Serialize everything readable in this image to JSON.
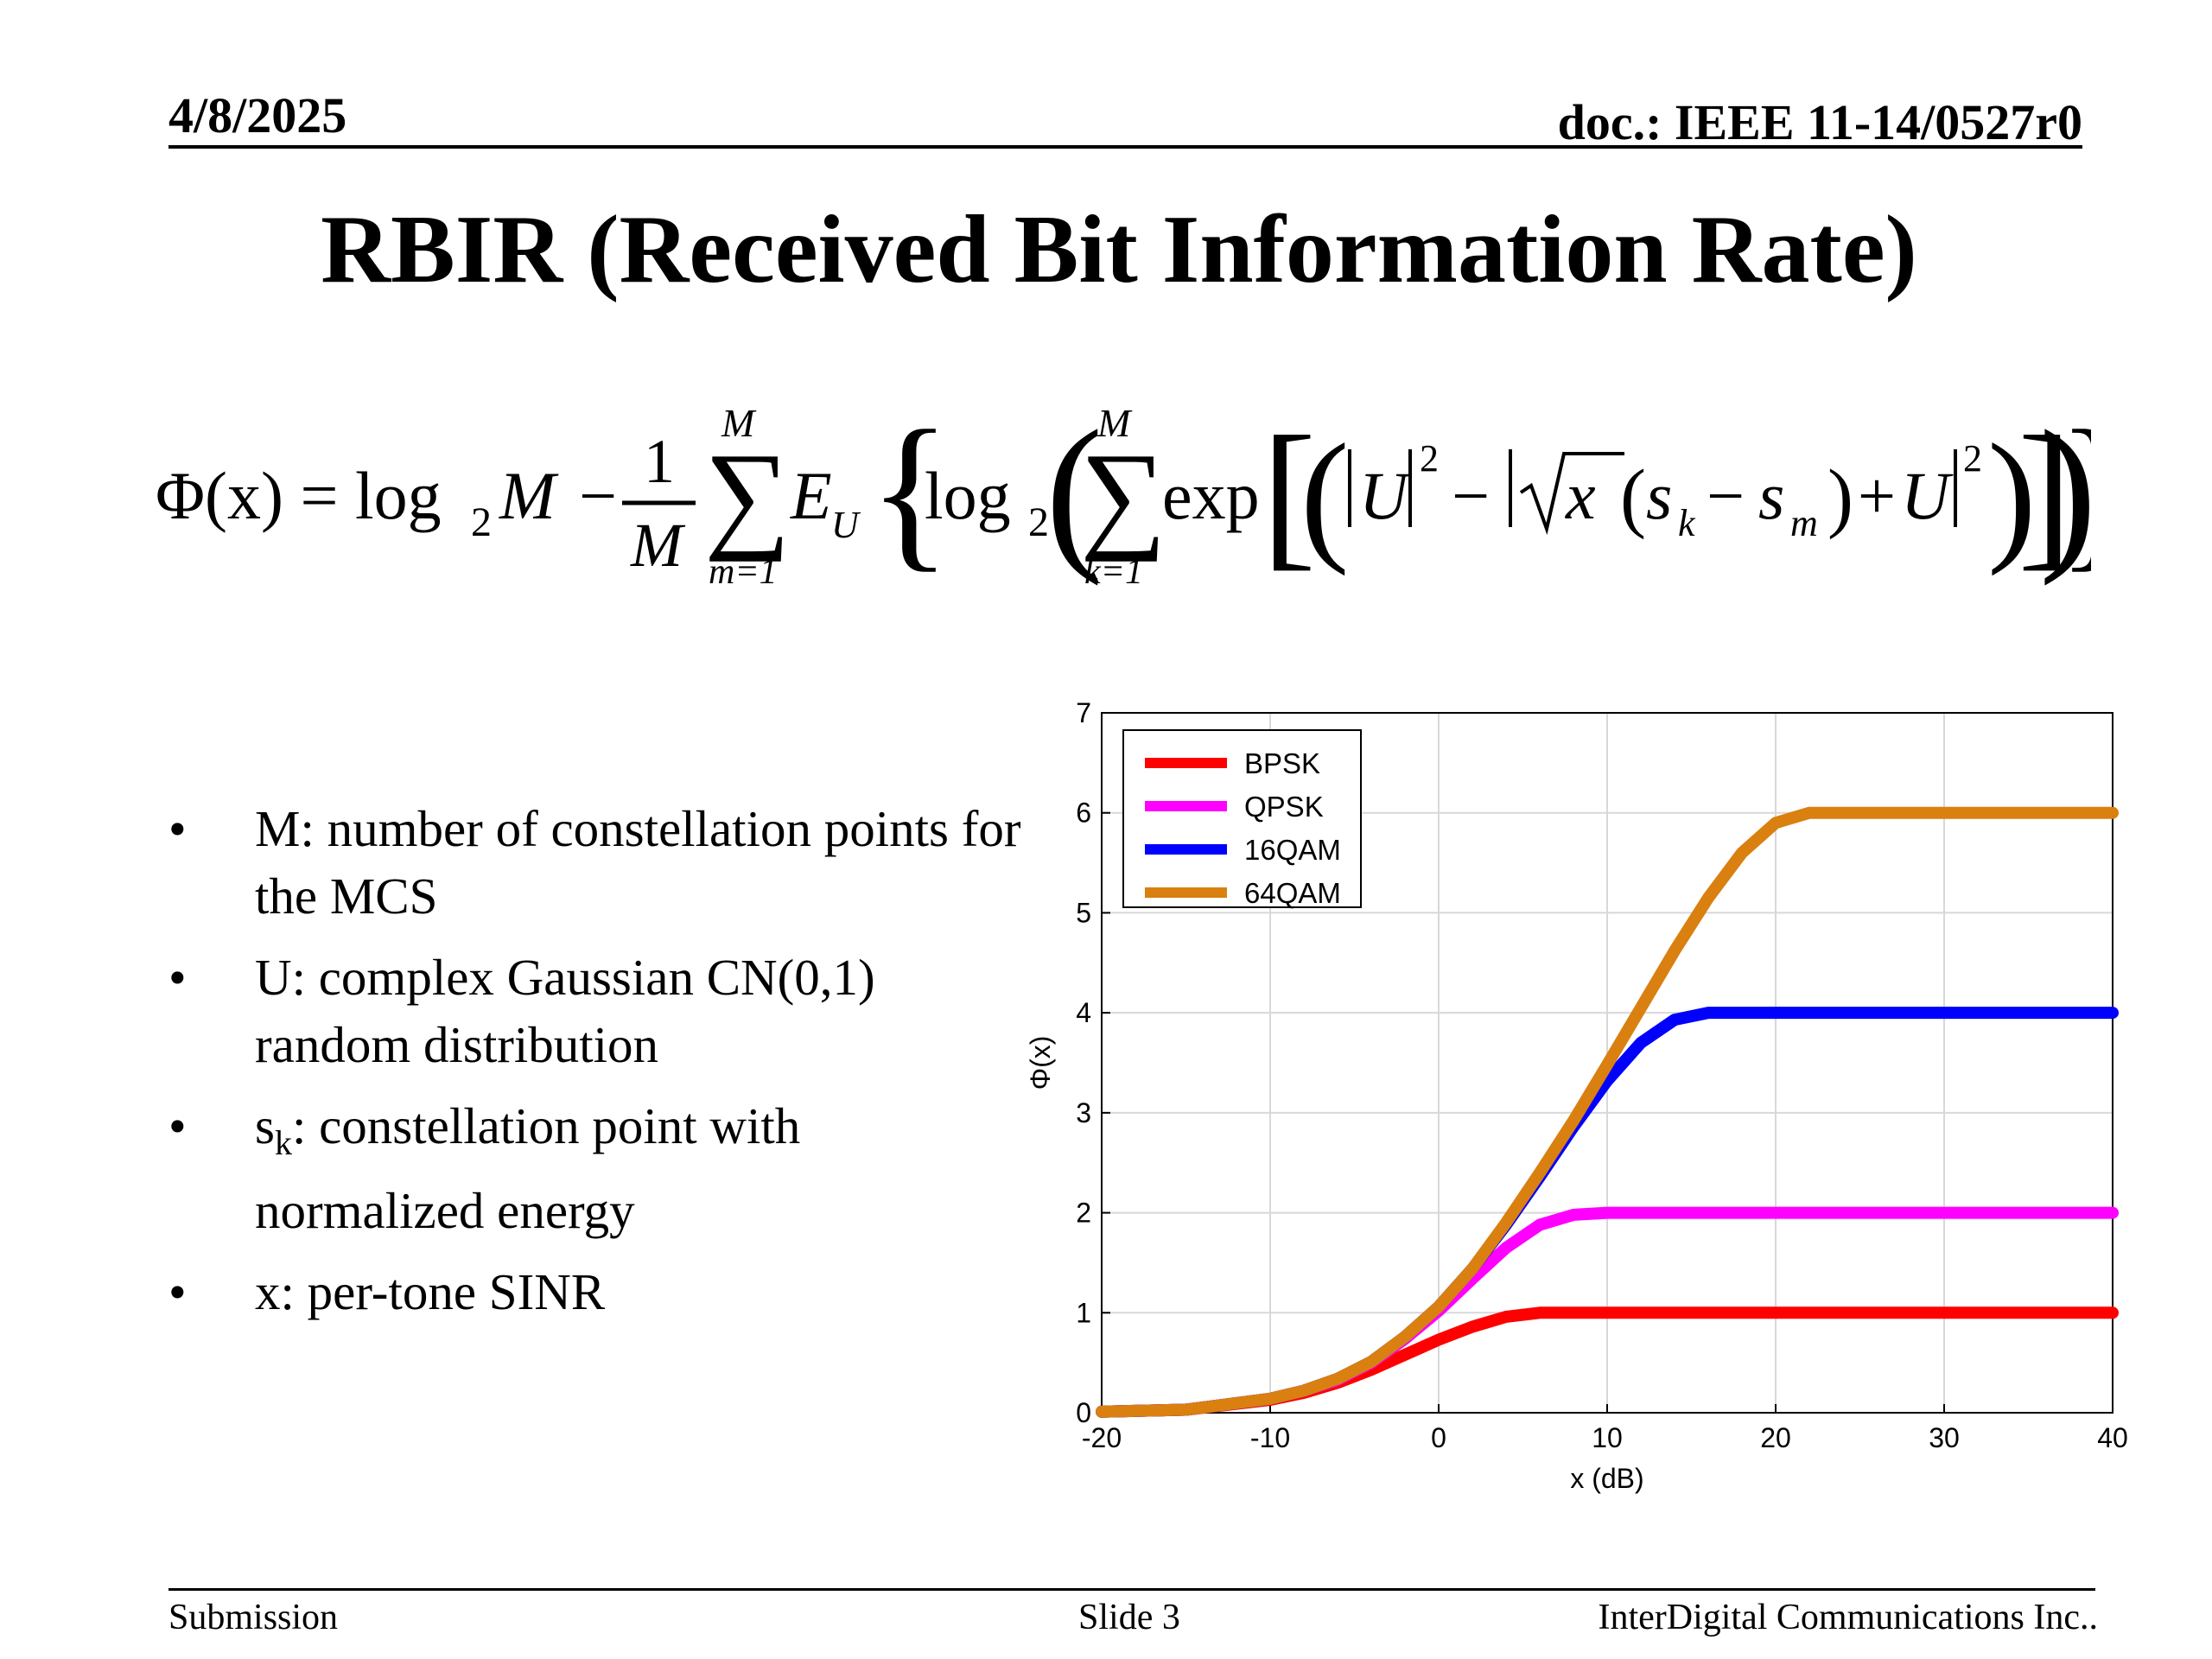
{
  "header": {
    "date": "4/8/2025",
    "doc": "doc.: IEEE 11-14/0527r0"
  },
  "title": "RBIR (Received Bit Information Rate)",
  "formula": {
    "lhs": "Φ(x) = log",
    "sub2": "2",
    "M": "M",
    "minus": "−",
    "one": "1",
    "sum_top": "M",
    "sum_bottom_m": "m=1",
    "EU": "E",
    "U_sub": "U",
    "log2": "log",
    "sum_bottom_k": "k=1",
    "exp": "exp",
    "U": "U",
    "sq": "2",
    "x": "x",
    "s": "s",
    "k": "k",
    "m": "m",
    "plus": "+"
  },
  "bullets": [
    {
      "dot": "•",
      "text": "M: number of constellation points  for the MCS"
    },
    {
      "dot": "•",
      "text": "U: complex Gaussian CN(0,1) random distribution"
    },
    {
      "dot": "•",
      "text_pre": "s",
      "text_sub": "k",
      "text_post": ": constellation point with normalized energy"
    },
    {
      "dot": "•",
      "text": "x: per-tone SINR"
    }
  ],
  "footer": {
    "left": "Submission",
    "middle": "Slide 3",
    "right": "InterDigital Communications Inc.."
  },
  "chart_data": {
    "type": "line",
    "xlabel": "x (dB)",
    "ylabel": "Φ(x)",
    "xlim": [
      -20,
      40
    ],
    "ylim": [
      0,
      7
    ],
    "xticks": [
      -20,
      -10,
      0,
      10,
      20,
      30,
      40
    ],
    "yticks": [
      0,
      1,
      2,
      3,
      4,
      5,
      6,
      7
    ],
    "grid": true,
    "legend": "top-left",
    "x": [
      -20,
      -15,
      -10,
      -8,
      -6,
      -4,
      -2,
      0,
      2,
      4,
      6,
      8,
      10,
      12,
      14,
      16,
      18,
      20,
      22,
      24,
      30,
      40
    ],
    "series": [
      {
        "name": "BPSK",
        "color": "#ff0000",
        "values": [
          0.01,
          0.03,
          0.13,
          0.2,
          0.3,
          0.43,
          0.58,
          0.73,
          0.86,
          0.96,
          1.0,
          1.0,
          1.0,
          1.0,
          1.0,
          1.0,
          1.0,
          1.0,
          1.0,
          1.0,
          1.0,
          1.0
        ]
      },
      {
        "name": "QPSK",
        "color": "#ff00ff",
        "values": [
          0.01,
          0.03,
          0.14,
          0.22,
          0.33,
          0.5,
          0.74,
          1.02,
          1.34,
          1.65,
          1.88,
          1.98,
          2.0,
          2.0,
          2.0,
          2.0,
          2.0,
          2.0,
          2.0,
          2.0,
          2.0,
          2.0
        ]
      },
      {
        "name": "16QAM",
        "color": "#0000ff",
        "values": [
          0.01,
          0.03,
          0.14,
          0.22,
          0.34,
          0.51,
          0.76,
          1.06,
          1.44,
          1.88,
          2.36,
          2.86,
          3.32,
          3.7,
          3.93,
          4.0,
          4.0,
          4.0,
          4.0,
          4.0,
          4.0,
          4.0
        ]
      },
      {
        "name": "64QAM",
        "color": "#d98010",
        "values": [
          0.01,
          0.03,
          0.14,
          0.22,
          0.34,
          0.51,
          0.76,
          1.06,
          1.44,
          1.9,
          2.4,
          2.92,
          3.48,
          4.05,
          4.62,
          5.15,
          5.6,
          5.9,
          6.0,
          6.0,
          6.0,
          6.0
        ]
      }
    ]
  }
}
